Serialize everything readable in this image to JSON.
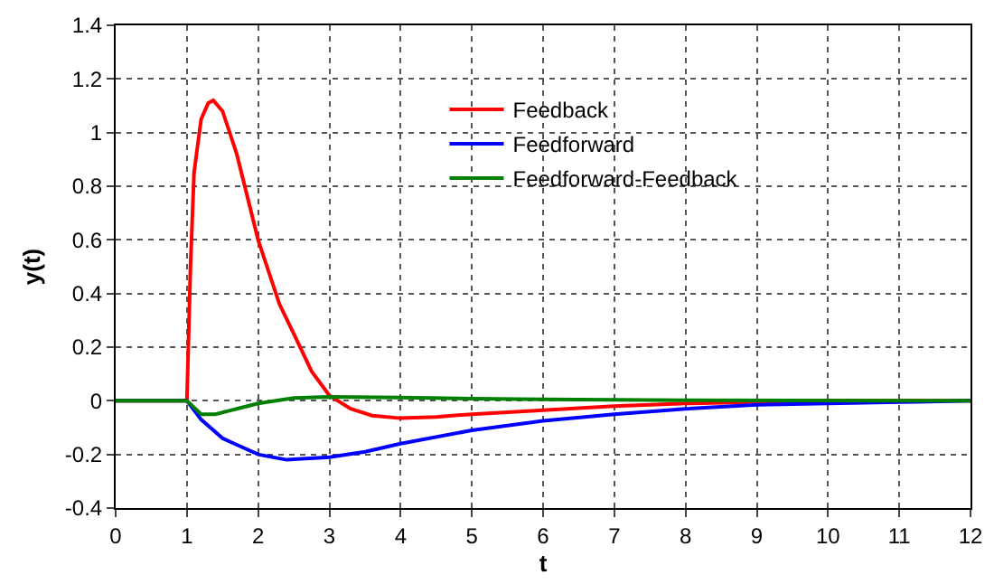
{
  "chart_data": {
    "type": "line",
    "xlabel": "t",
    "ylabel": "y(t)",
    "xlim": [
      0,
      12
    ],
    "xticks": [
      0,
      1,
      2,
      3,
      4,
      5,
      6,
      7,
      8,
      9,
      10,
      11,
      12
    ],
    "ylim": [
      -0.4,
      1.4
    ],
    "yticks": [
      -0.4,
      -0.2,
      0,
      0.2,
      0.4,
      0.6,
      0.8,
      1,
      1.2,
      1.4
    ],
    "grid": true,
    "legend": "top",
    "marker": "none",
    "line_style": "solid",
    "series": [
      {
        "name": "Feedback",
        "color": "#ff0000",
        "x": [
          0,
          1,
          1.05,
          1.1,
          1.2,
          1.3,
          1.37,
          1.5,
          1.7,
          2,
          2.3,
          2.5,
          2.75,
          3,
          3.3,
          3.6,
          4,
          4.5,
          5,
          6,
          7,
          8,
          9,
          10,
          12
        ],
        "values": [
          0,
          0,
          0.5,
          0.85,
          1.05,
          1.11,
          1.12,
          1.08,
          0.92,
          0.6,
          0.36,
          0.25,
          0.11,
          0.02,
          -0.03,
          -0.055,
          -0.065,
          -0.06,
          -0.05,
          -0.035,
          -0.02,
          -0.01,
          -0.005,
          0,
          0
        ]
      },
      {
        "name": "Feedforward",
        "color": "#0000ff",
        "x": [
          0,
          1,
          1.2,
          1.5,
          2,
          2.4,
          3,
          3.5,
          4,
          5,
          6,
          7,
          8,
          9,
          10,
          11,
          12
        ],
        "values": [
          0,
          0,
          -0.07,
          -0.14,
          -0.2,
          -0.22,
          -0.21,
          -0.19,
          -0.16,
          -0.11,
          -0.075,
          -0.05,
          -0.03,
          -0.015,
          -0.01,
          -0.005,
          0
        ]
      },
      {
        "name": "Feedforward-Feedback",
        "color": "#008000",
        "x": [
          0,
          1,
          1.2,
          1.4,
          1.7,
          2,
          2.5,
          3,
          4,
          5,
          6,
          8,
          12
        ],
        "values": [
          0,
          0,
          -0.05,
          -0.05,
          -0.03,
          -0.01,
          0.01,
          0.015,
          0.012,
          0.008,
          0.005,
          0.002,
          0
        ]
      }
    ]
  }
}
